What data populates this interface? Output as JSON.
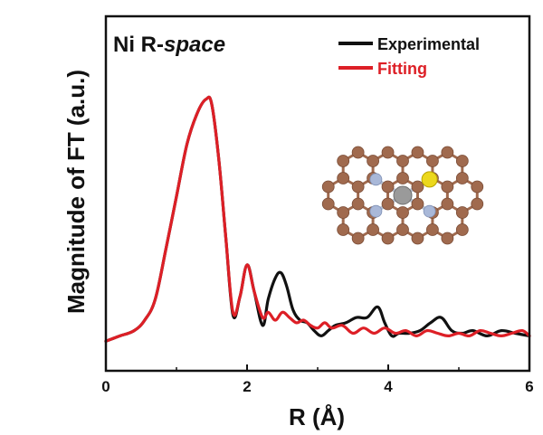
{
  "chart_data": {
    "type": "line",
    "title_prefix": "Ni R-",
    "title_italic": "space",
    "xlabel": "R (Å)",
    "ylabel": "Magnitude of FT (a.u.)",
    "xlim": [
      0,
      6
    ],
    "ylim": [
      0,
      1
    ],
    "xticks": [
      "0",
      "2",
      "4",
      "6"
    ],
    "grid": false,
    "legend_position": "top-right",
    "series": [
      {
        "name": "Experimental",
        "color": "#111111",
        "x": [
          0,
          0.2,
          0.4,
          0.55,
          0.7,
          0.85,
          1.0,
          1.15,
          1.3,
          1.42,
          1.5,
          1.6,
          1.7,
          1.8,
          1.9,
          2.0,
          2.1,
          2.22,
          2.3,
          2.4,
          2.48,
          2.56,
          2.65,
          2.75,
          2.85,
          2.95,
          3.05,
          3.15,
          3.25,
          3.4,
          3.55,
          3.7,
          3.85,
          3.95,
          4.05,
          4.15,
          4.3,
          4.45,
          4.6,
          4.75,
          4.9,
          5.05,
          5.2,
          5.4,
          5.6,
          5.8,
          6.0
        ],
        "y": [
          0.03,
          0.05,
          0.07,
          0.11,
          0.19,
          0.38,
          0.58,
          0.78,
          0.9,
          0.95,
          0.93,
          0.72,
          0.42,
          0.13,
          0.2,
          0.32,
          0.22,
          0.09,
          0.19,
          0.27,
          0.29,
          0.24,
          0.15,
          0.11,
          0.1,
          0.07,
          0.05,
          0.07,
          0.09,
          0.1,
          0.12,
          0.12,
          0.16,
          0.1,
          0.05,
          0.06,
          0.06,
          0.07,
          0.1,
          0.12,
          0.07,
          0.06,
          0.07,
          0.05,
          0.07,
          0.06,
          0.05
        ]
      },
      {
        "name": "Fitting",
        "color": "#dd1f26",
        "x": [
          0,
          0.2,
          0.4,
          0.55,
          0.7,
          0.85,
          1.0,
          1.15,
          1.3,
          1.42,
          1.5,
          1.6,
          1.7,
          1.8,
          1.9,
          2.0,
          2.1,
          2.22,
          2.3,
          2.4,
          2.5,
          2.6,
          2.7,
          2.8,
          2.9,
          3.0,
          3.1,
          3.2,
          3.35,
          3.5,
          3.65,
          3.8,
          3.95,
          4.1,
          4.25,
          4.4,
          4.55,
          4.7,
          4.85,
          5.0,
          5.15,
          5.3,
          5.45,
          5.6,
          5.75,
          5.9,
          6.0
        ],
        "y": [
          0.03,
          0.05,
          0.07,
          0.11,
          0.19,
          0.38,
          0.58,
          0.78,
          0.9,
          0.95,
          0.93,
          0.72,
          0.42,
          0.14,
          0.2,
          0.32,
          0.22,
          0.12,
          0.14,
          0.11,
          0.14,
          0.12,
          0.1,
          0.11,
          0.09,
          0.08,
          0.1,
          0.08,
          0.09,
          0.06,
          0.08,
          0.06,
          0.08,
          0.06,
          0.07,
          0.05,
          0.07,
          0.06,
          0.05,
          0.06,
          0.05,
          0.07,
          0.06,
          0.05,
          0.06,
          0.07,
          0.05
        ]
      }
    ]
  },
  "inset": {
    "atoms": {
      "carbon": "#a06a4e",
      "nitrogen": "#a9b8d8",
      "nickel": "#9a9a9a",
      "sulfur": "#ecd81c"
    }
  }
}
